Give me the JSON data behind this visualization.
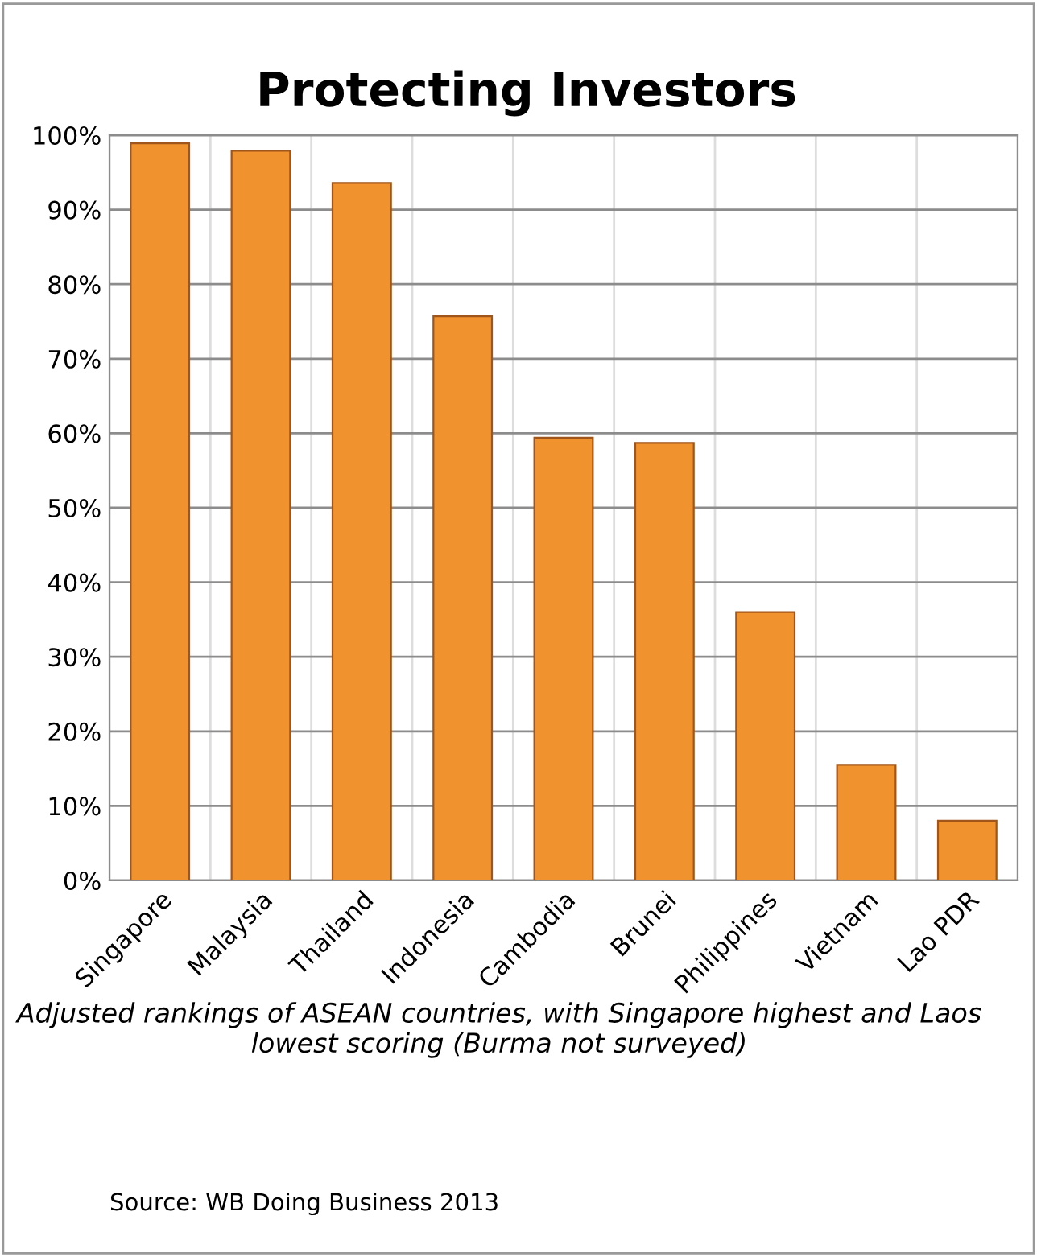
{
  "chart_data": {
    "type": "bar",
    "title": "Protecting Investors",
    "categories": [
      "Singapore",
      "Malaysia",
      "Thailand",
      "Indonesia",
      "Cambodia",
      "Brunei",
      "Philippines",
      "Vietnam",
      "Lao PDR"
    ],
    "values": [
      98.9,
      97.9,
      93.6,
      75.7,
      59.4,
      58.7,
      36.0,
      15.5,
      8.0
    ],
    "color": "#f0922e",
    "ylim": [
      0,
      100
    ],
    "yticks": [
      {
        "value": 0,
        "label": "0%"
      },
      {
        "value": 10,
        "label": "10%"
      },
      {
        "value": 20,
        "label": "20%"
      },
      {
        "value": 30,
        "label": "30%"
      },
      {
        "value": 40,
        "label": "40%"
      },
      {
        "value": 50,
        "label": "50%"
      },
      {
        "value": 60,
        "label": "60%"
      },
      {
        "value": 70,
        "label": "70%"
      },
      {
        "value": 80,
        "label": "80%"
      },
      {
        "value": 90,
        "label": "90%"
      },
      {
        "value": 100,
        "label": "100%"
      }
    ],
    "grid": true,
    "annotations": [
      "Adjusted rankings of ASEAN countries, with Singapore highest and Laos lowest scoring (Burma not surveyed)",
      "Source: WB Doing Business 2013"
    ]
  }
}
